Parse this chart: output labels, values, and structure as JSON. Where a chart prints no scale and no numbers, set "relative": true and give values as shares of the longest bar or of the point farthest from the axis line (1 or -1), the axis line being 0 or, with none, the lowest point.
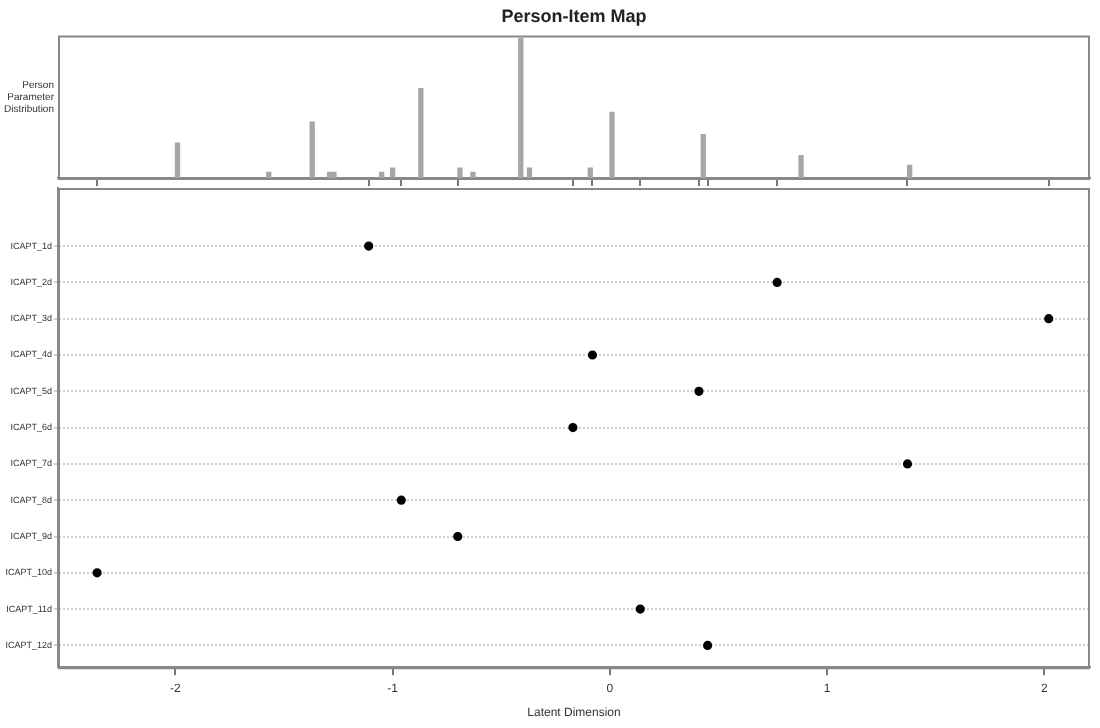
{
  "chart_data": [
    {
      "type": "bar",
      "title": "Person-Item Map",
      "ylabel": "Person Parameter Distribution",
      "relative": true,
      "color": "#a6a6a6",
      "tick_labels": false,
      "x": [
        -1.99,
        -1.57,
        -1.37,
        -1.29,
        -1.27,
        -1.05,
        -1.0,
        -0.87,
        -0.69,
        -0.63,
        -0.41,
        -0.37,
        -0.09,
        0.01,
        0.43,
        0.88,
        1.38
      ],
      "values": [
        0.25,
        0.04,
        0.4,
        0.04,
        0.04,
        0.04,
        0.07,
        0.64,
        0.07,
        0.04,
        1,
        0.07,
        0.07,
        0.47,
        0.31,
        0.16,
        0.09
      ],
      "xlim": [
        -2.54,
        2.21
      ],
      "xticks": [
        {
          "value": -2.36,
          "label": null
        },
        {
          "value": -1.11,
          "label": null
        },
        {
          "value": -0.96,
          "label": null
        },
        {
          "value": -0.7,
          "label": null
        },
        {
          "value": -0.17,
          "label": null
        },
        {
          "value": -0.08,
          "label": null
        },
        {
          "value": 0.14,
          "label": null
        },
        {
          "value": 0.41,
          "label": null
        },
        {
          "value": 0.45,
          "label": null
        },
        {
          "value": 0.77,
          "label": null
        },
        {
          "value": 1.37,
          "label": null
        },
        {
          "value": 2.02,
          "label": null
        }
      ]
    },
    {
      "type": "scatter",
      "orientation": "horizontal",
      "xlabel": "Latent Dimension",
      "color": "#000000",
      "marker": "circle",
      "grid": "y",
      "categories": [
        "ICAPT_1d",
        "ICAPT_2d",
        "ICAPT_3d",
        "ICAPT_4d",
        "ICAPT_5d",
        "ICAPT_6d",
        "ICAPT_7d",
        "ICAPT_8d",
        "ICAPT_9d",
        "ICAPT_10d",
        "ICAPT_11d",
        "ICAPT_12d"
      ],
      "values": [
        -1.11,
        0.77,
        2.02,
        -0.08,
        0.41,
        -0.17,
        1.37,
        -0.96,
        -0.7,
        -2.36,
        0.14,
        0.45
      ],
      "xlim": [
        -2.54,
        2.21
      ],
      "xticks": [
        -2,
        -1,
        0,
        1,
        2
      ]
    }
  ]
}
